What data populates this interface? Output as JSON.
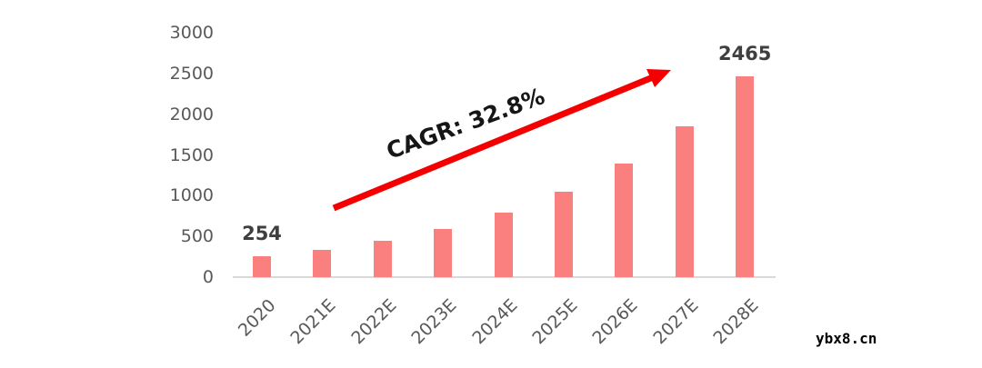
{
  "watermark": "ybx8.cn",
  "annotation": {
    "cagr_label": "CAGR: 32.8%"
  },
  "colors": {
    "bar": "#fa8080",
    "arrow": "#f40000",
    "axis_line": "#d9d9d9",
    "axis_text": "#595959",
    "data_label_text": "#3f3f3f",
    "annotation_text": "#161616",
    "watermark_text": "#000000",
    "background": "#ffffff"
  },
  "chart_data": {
    "type": "bar",
    "categories": [
      "2020",
      "2021E",
      "2022E",
      "2023E",
      "2024E",
      "2025E",
      "2026E",
      "2027E",
      "2028E"
    ],
    "values": [
      254,
      337,
      448,
      595,
      790,
      1049,
      1393,
      1850,
      2465
    ],
    "data_labels": [
      {
        "index": 0,
        "text": "254"
      },
      {
        "index": 8,
        "text": "2465"
      }
    ],
    "title": "",
    "xlabel": "",
    "ylabel": "",
    "ylim": [
      0,
      3000
    ],
    "yticks": [
      0,
      500,
      1000,
      1500,
      2000,
      2500,
      3000
    ],
    "grid": false,
    "legend": false,
    "annotation": "CAGR: 32.8%"
  }
}
